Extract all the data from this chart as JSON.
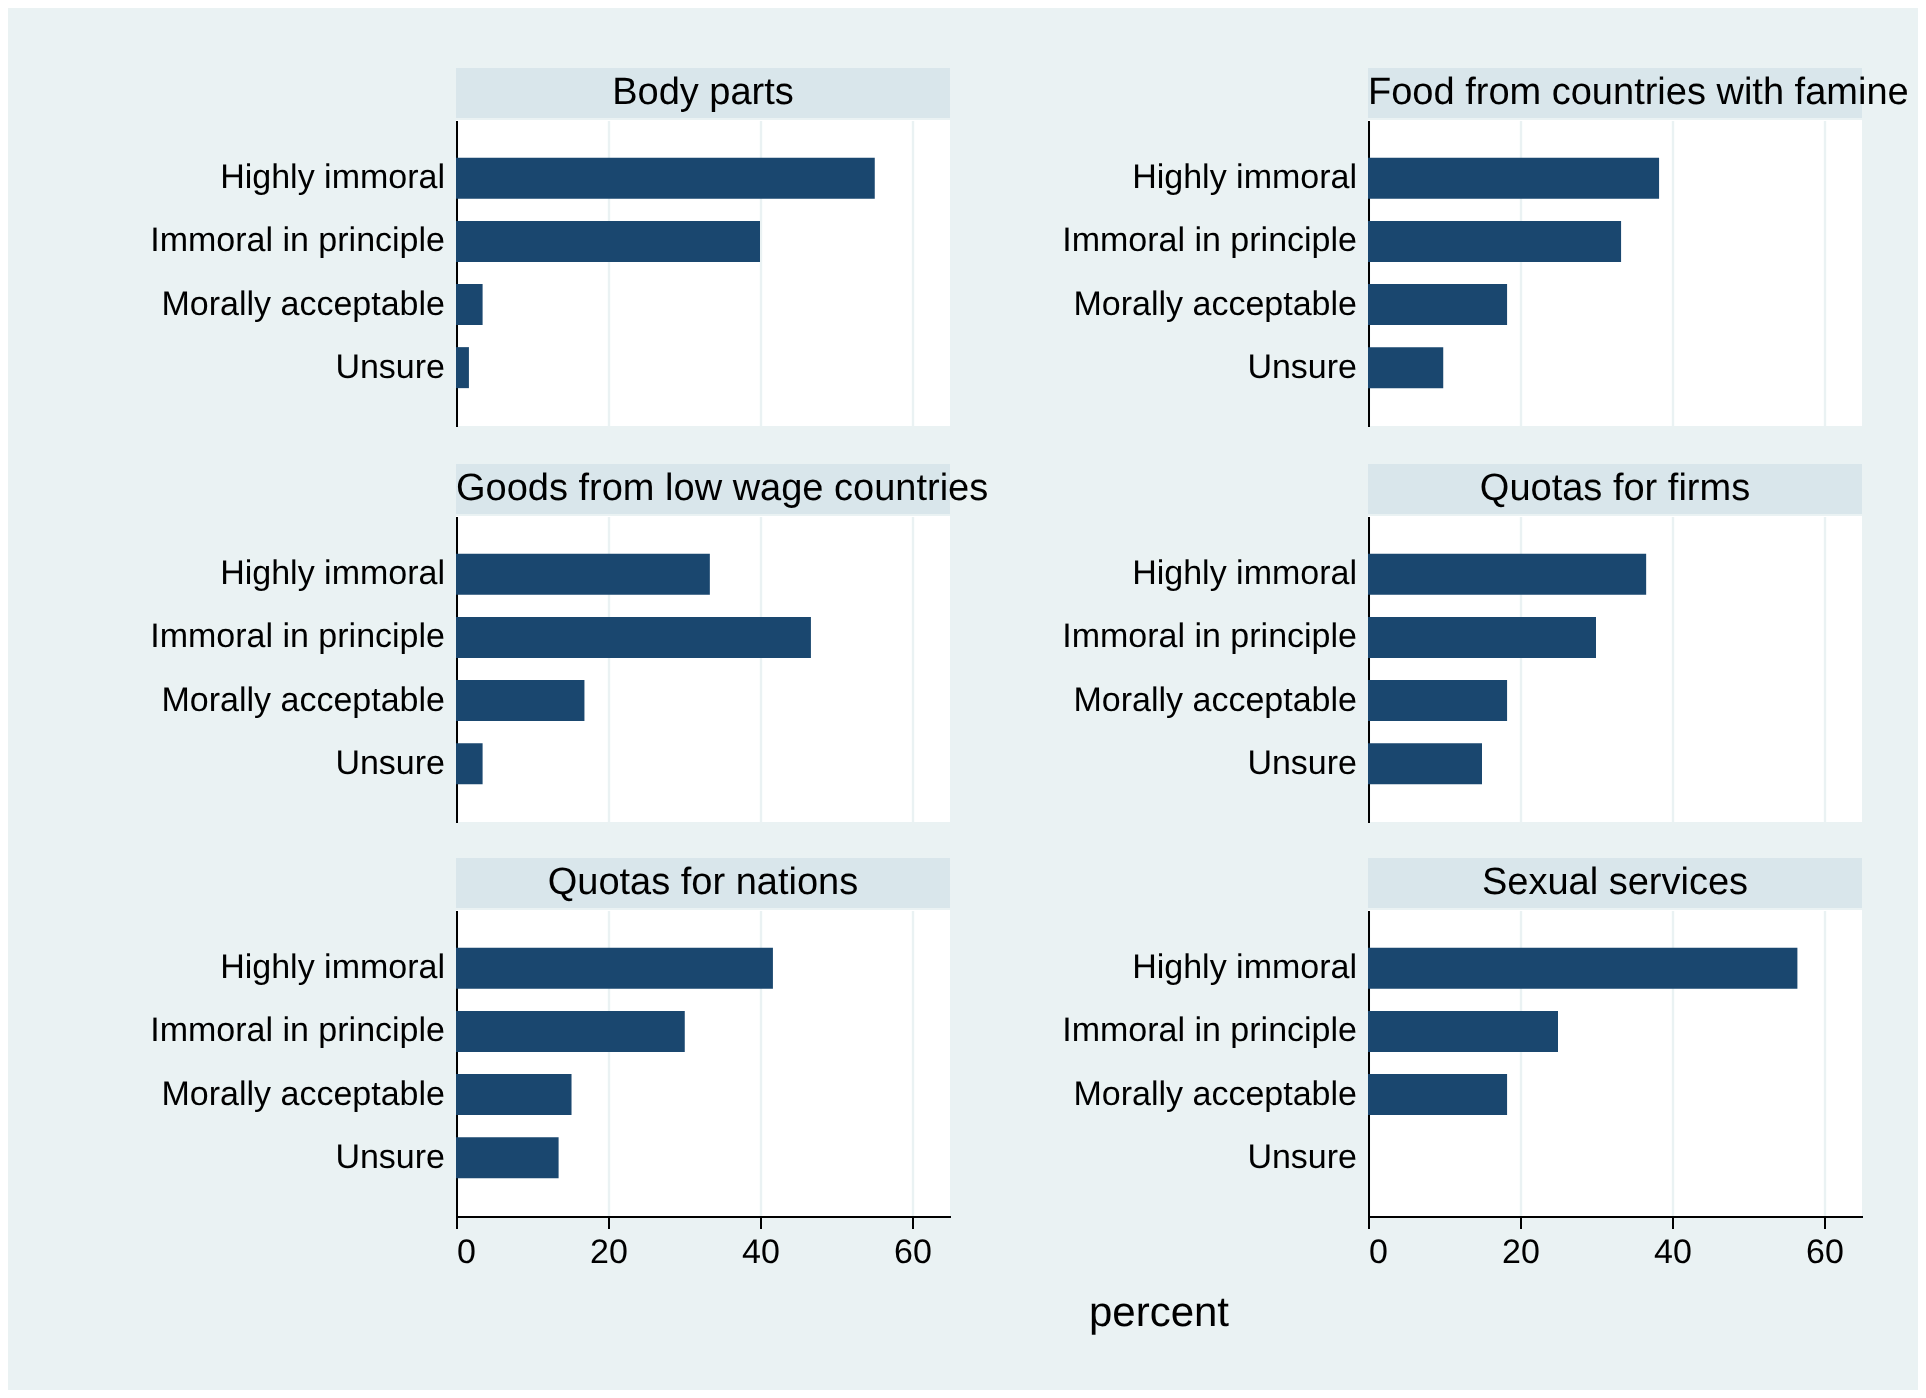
{
  "chart_data": [
    {
      "type": "bar",
      "orientation": "horizontal",
      "title": "Body parts",
      "categories": [
        "Highly immoral",
        "Immoral in principle",
        "Morally acceptable",
        "Unsure"
      ],
      "values": [
        55.1,
        40,
        3.5,
        1.7
      ],
      "color": "#1a476f",
      "xlim": [
        0,
        65
      ],
      "xticks": [
        0,
        20,
        40,
        60
      ],
      "grid": "x",
      "tick_labels": "y"
    },
    {
      "type": "bar",
      "orientation": "horizontal",
      "title": "Food from countries with famine",
      "categories": [
        "Highly immoral",
        "Immoral in principle",
        "Morally acceptable",
        "Unsure"
      ],
      "values": [
        38.3,
        33.3,
        18.3,
        9.9
      ],
      "color": "#1a476f",
      "xlim": [
        0,
        65
      ],
      "xticks": [
        0,
        20,
        40,
        60
      ],
      "grid": "x",
      "tick_labels": "y"
    },
    {
      "type": "bar",
      "orientation": "horizontal",
      "title": "Goods from low wage countries",
      "categories": [
        "Highly immoral",
        "Immoral in principle",
        "Morally acceptable",
        "Unsure"
      ],
      "values": [
        33.4,
        46.7,
        16.9,
        3.5
      ],
      "color": "#1a476f",
      "xlim": [
        0,
        65
      ],
      "xticks": [
        0,
        20,
        40,
        60
      ],
      "grid": "x",
      "tick_labels": "y"
    },
    {
      "type": "bar",
      "orientation": "horizontal",
      "title": "Quotas for firms",
      "categories": [
        "Highly immoral",
        "Immoral in principle",
        "Morally acceptable",
        "Unsure"
      ],
      "values": [
        36.6,
        30,
        18.3,
        15
      ],
      "color": "#1a476f",
      "xlim": [
        0,
        65
      ],
      "xticks": [
        0,
        20,
        40,
        60
      ],
      "grid": "x",
      "tick_labels": "y"
    },
    {
      "type": "bar",
      "orientation": "horizontal",
      "title": "Quotas for nations",
      "categories": [
        "Highly immoral",
        "Immoral in principle",
        "Morally acceptable",
        "Unsure"
      ],
      "values": [
        41.7,
        30.1,
        15.2,
        13.5
      ],
      "color": "#1a476f",
      "xlim": [
        0,
        65
      ],
      "xticks": [
        0,
        20,
        40,
        60
      ],
      "grid": "x",
      "xlabel": "percent"
    },
    {
      "type": "bar",
      "orientation": "horizontal",
      "title": "Sexual services",
      "categories": [
        "Highly immoral",
        "Immoral in principle",
        "Morally acceptable",
        "Unsure"
      ],
      "values": [
        56.5,
        25,
        18.3,
        0
      ],
      "color": "#1a476f",
      "xlim": [
        0,
        65
      ],
      "xticks": [
        0,
        20,
        40,
        60
      ],
      "grid": "x"
    }
  ]
}
